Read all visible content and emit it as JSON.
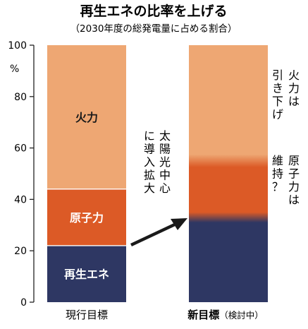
{
  "title": "再生エネの比率を上げる",
  "subtitle": "（2030年度の総発電量に占める割合）",
  "colors": {
    "renewable": "#2e3763",
    "nuclear": "#dc5a26",
    "thermal": "#eea773",
    "axis": "#222222",
    "arrow": "#1a1a1a"
  },
  "chart_data": {
    "type": "bar",
    "stacked": true,
    "categories": [
      "現行目標",
      "新目標"
    ],
    "category_suffix": [
      "",
      "（検討中）"
    ],
    "ylim": [
      0,
      100
    ],
    "yticks": [
      0,
      20,
      40,
      60,
      80,
      100
    ],
    "yunit": "%",
    "grid": false,
    "series": [
      {
        "name": "再生エネ",
        "color": "#2e3763",
        "values": [
          22,
          33
        ]
      },
      {
        "name": "原子力",
        "color": "#dc5a26",
        "values": [
          22,
          22
        ]
      },
      {
        "name": "火力",
        "color": "#eea773",
        "values": [
          56,
          45
        ]
      }
    ],
    "annotations": {
      "middle_text": "太陽光中心に導入拡大",
      "right_text_1": "火力は引き下げ",
      "right_text_2": "原子力は維持？"
    }
  }
}
